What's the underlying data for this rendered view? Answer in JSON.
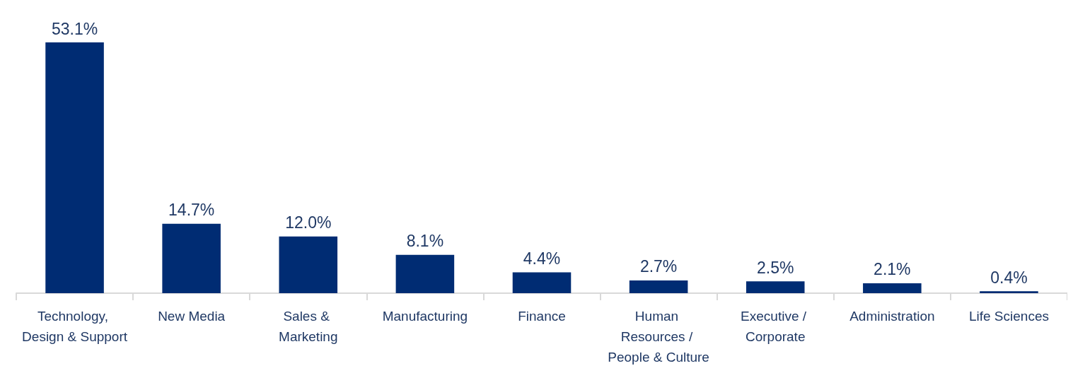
{
  "chart_data": {
    "type": "bar",
    "categories": [
      "Technology, Design & Support",
      "New Media",
      "Sales & Marketing",
      "Manufacturing",
      "Finance",
      "Human Resources / People & Culture",
      "Executive / Corporate",
      "Administration",
      "Life Sciences"
    ],
    "values": [
      53.1,
      14.7,
      12.0,
      8.1,
      4.4,
      2.7,
      2.5,
      2.1,
      0.4
    ],
    "value_labels": [
      "53.1%",
      "14.7%",
      "12.0%",
      "8.1%",
      "4.4%",
      "2.7%",
      "2.5%",
      "2.1%",
      "0.4%"
    ],
    "color": "#002c73"
  }
}
